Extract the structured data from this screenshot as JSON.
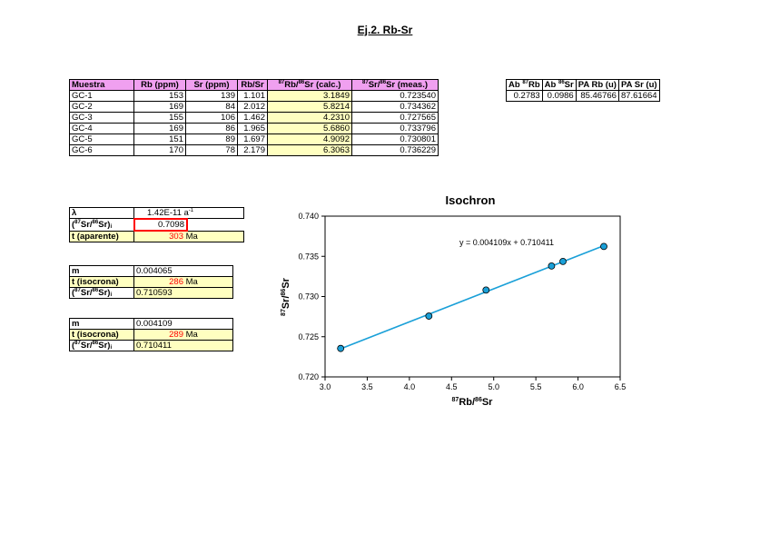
{
  "title": "Ej.2. Rb-Sr",
  "main_table": {
    "headers": [
      "Muestra",
      "Rb (ppm)",
      "Sr (ppm)",
      "Rb/Sr"
    ],
    "header_calc_suffix": "Sr (calc.)",
    "header_meas_suffix": "Sr (meas.)",
    "rows": [
      [
        "GC-1",
        "153",
        "139",
        "1.101",
        "3.1849",
        "0.723540"
      ],
      [
        "GC-2",
        "169",
        "84",
        "2.012",
        "5.8214",
        "0.734362"
      ],
      [
        "GC-3",
        "155",
        "106",
        "1.462",
        "4.2310",
        "0.727565"
      ],
      [
        "GC-4",
        "169",
        "86",
        "1.965",
        "5.6860",
        "0.733796"
      ],
      [
        "GC-5",
        "151",
        "89",
        "1.697",
        "4.9092",
        "0.730801"
      ],
      [
        "GC-6",
        "170",
        "78",
        "2.179",
        "6.3063",
        "0.736229"
      ]
    ]
  },
  "abund_table": {
    "h1_prefix": "Ab",
    "h1_el": "Rb",
    "h2_prefix": "Ab",
    "h2_el": "Sr",
    "h3": "PA Rb (u)",
    "h4": "PA Sr (u)",
    "values": [
      "0.2783",
      "0.0986",
      "85.46766",
      "87.61664"
    ]
  },
  "params1": {
    "lambda_label": "λ",
    "lambda_value": "1.42E-11",
    "lambda_unit": "a",
    "lambda_exp": "-1",
    "ratio_label_suffix": "Sr)",
    "ratio_value": "0.7098",
    "t_label": "t (aparente)",
    "t_value": "303",
    "t_unit": "Ma"
  },
  "params2": {
    "m_label": "m",
    "m_value": "0.004065",
    "t_label": "t (isocrona)",
    "t_value": "286",
    "t_unit": "Ma",
    "ratio_value": "0.710593"
  },
  "params3": {
    "m_label": "m",
    "m_value": "0.004109",
    "t_label": "t (isocrona)",
    "t_value": "289",
    "t_unit": "Ma",
    "ratio_value": "0.710411"
  },
  "chart_data": {
    "type": "scatter",
    "title": "Isochron",
    "xlabel": "87Rb/86Sr",
    "ylabel": "87Sr/86Sr",
    "xlim": [
      3.0,
      6.5
    ],
    "ylim": [
      0.72,
      0.74
    ],
    "xticks": [
      "3.0",
      "3.5",
      "4.0",
      "4.5",
      "5.0",
      "5.5",
      "6.0",
      "6.5"
    ],
    "yticks": [
      "0.720",
      "0.725",
      "0.730",
      "0.735",
      "0.740"
    ],
    "points": [
      {
        "x": 3.1849,
        "y": 0.72354
      },
      {
        "x": 5.8214,
        "y": 0.734362
      },
      {
        "x": 4.231,
        "y": 0.727565
      },
      {
        "x": 5.686,
        "y": 0.733796
      },
      {
        "x": 4.9092,
        "y": 0.730801
      },
      {
        "x": 6.3063,
        "y": 0.736229
      }
    ],
    "trendline": {
      "slope": 0.004109,
      "intercept": 0.710411,
      "label": "y = 0.004109x + 0.710411"
    },
    "point_color": "#1aa0d8",
    "line_color": "#1aa0d8",
    "grid": false,
    "legend": "none"
  }
}
